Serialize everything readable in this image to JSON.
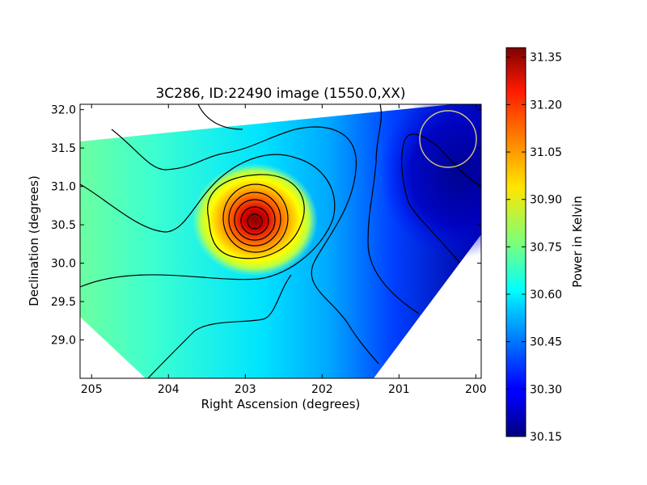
{
  "chart_data": {
    "type": "heatmap",
    "title": "3C286, ID:22490 image (1550.0,XX)",
    "xlabel": "Right Ascension (degrees)",
    "ylabel": "Declination (degrees)",
    "xlim": [
      205.15,
      199.93
    ],
    "ylim": [
      28.5,
      32.07
    ],
    "x_ticks": [
      {
        "value": 205,
        "label": "205"
      },
      {
        "value": 204,
        "label": "204"
      },
      {
        "value": 203,
        "label": "203"
      },
      {
        "value": 202,
        "label": "202"
      },
      {
        "value": 201,
        "label": "201"
      },
      {
        "value": 200,
        "label": "200"
      }
    ],
    "y_ticks": [
      {
        "value": 29.0,
        "label": "29.0"
      },
      {
        "value": 29.5,
        "label": "29.5"
      },
      {
        "value": 30.0,
        "label": "30.0"
      },
      {
        "value": 30.5,
        "label": "30.5"
      },
      {
        "value": 31.0,
        "label": "31.0"
      },
      {
        "value": 31.5,
        "label": "31.5"
      },
      {
        "value": 32.0,
        "label": "32.0"
      }
    ],
    "colorbar": {
      "label": "Power in Kelvin",
      "min": 30.15,
      "max": 31.38,
      "ticks": [
        {
          "value": 30.15,
          "label": "30.15"
        },
        {
          "value": 30.3,
          "label": "30.30"
        },
        {
          "value": 30.45,
          "label": "30.45"
        },
        {
          "value": 30.6,
          "label": "30.60"
        },
        {
          "value": 30.75,
          "label": "30.75"
        },
        {
          "value": 30.9,
          "label": "30.90"
        },
        {
          "value": 31.05,
          "label": "31.05"
        },
        {
          "value": 31.2,
          "label": "31.20"
        },
        {
          "value": 31.35,
          "label": "31.35"
        }
      ],
      "colormap": "jet"
    },
    "peak": {
      "ra": 202.9,
      "dec": 30.55,
      "value": 31.38
    },
    "marker_circle": {
      "ra": 200.35,
      "dec": 31.62,
      "color": "#d4c878"
    }
  }
}
